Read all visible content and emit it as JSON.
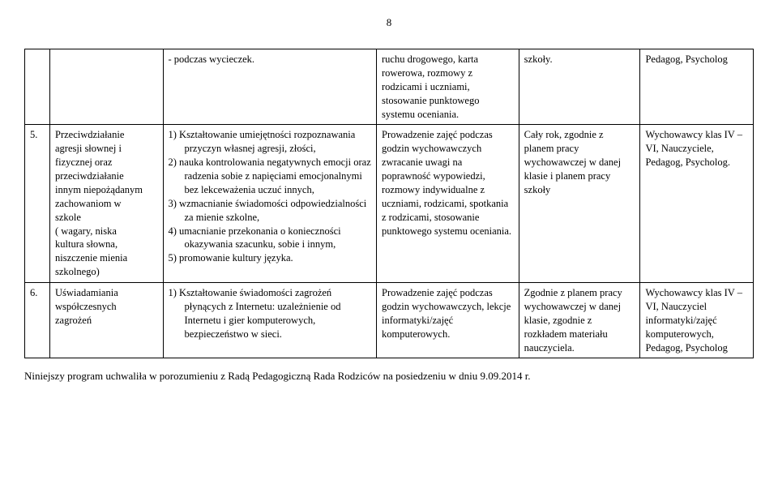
{
  "page_number": "8",
  "rows": [
    {
      "num": "",
      "title_lines": [],
      "col2_bullets": [
        "-  podczas wycieczek."
      ],
      "col2_numbered": [],
      "col3": "ruchu drogowego, karta rowerowa, rozmowy z rodzicami i uczniami, stosowanie punktowego systemu oceniania.",
      "col4": "szkoły.",
      "col5": "Pedagog, Psycholog"
    },
    {
      "num": "5.",
      "title_lines": [
        "Przeciwdziałanie",
        "agresji słownej i",
        "fizycznej oraz",
        "przeciwdziałanie",
        "innym niepożądanym",
        "zachowaniom w",
        "szkole",
        " ( wagary, niska",
        "kultura słowna,",
        "niszczenie mienia",
        "szkolnego)"
      ],
      "col2_bullets": [],
      "col2_numbered": [
        "1)  Kształtowanie umiejętności rozpoznawania przyczyn własnej agresji, złości,",
        "2)  nauka kontrolowania negatywnych emocji oraz radzenia sobie z napięciami emocjonalnymi bez lekceważenia uczuć innych,",
        "3)  wzmacnianie świadomości odpowiedzialności za mienie szkolne,",
        "4)  umacnianie przekonania o konieczności okazywania szacunku, sobie i innym,",
        "5) promowanie kultury języka."
      ],
      "col3": "Prowadzenie zajęć podczas godzin wychowawczych zwracanie uwagi na poprawność wypowiedzi, rozmowy indywidualne z uczniami, rodzicami, spotkania z rodzicami, stosowanie punktowego systemu oceniania.",
      "col4": "Cały rok, zgodnie z planem pracy wychowawczej w danej klasie i planem pracy szkoły",
      "col5": "Wychowawcy klas IV – VI, Nauczyciele, Pedagog, Psycholog."
    },
    {
      "num": "6.",
      "title_lines": [
        "Uświadamiania",
        "współczesnych",
        "zagrożeń"
      ],
      "col2_bullets": [],
      "col2_numbered": [
        "1)  Kształtowanie świadomości zagrożeń płynących z Internetu: uzależnienie od Internetu i gier komputerowych, bezpieczeństwo w sieci."
      ],
      "col3": "Prowadzenie zajęć podczas godzin wychowawczych, lekcje informatyki/zajęć komputerowych.",
      "col4": "Zgodnie z planem pracy wychowawczej w danej klasie, zgodnie z rozkładem materiału nauczyciela.",
      "col5": "Wychowawcy klas IV – VI, Nauczyciel informatyki/zajęć komputerowych, Pedagog, Psycholog"
    }
  ],
  "footnote": "Niniejszy program uchwaliła w porozumieniu z Radą Pedagogiczną Rada Rodziców na posiedzeniu w dniu 9.09.2014 r."
}
